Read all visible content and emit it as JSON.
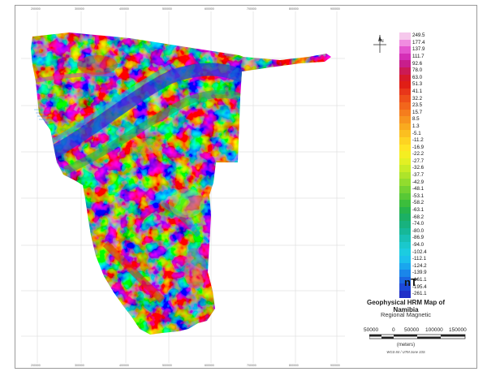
{
  "map": {
    "title": "Geophysical HRM Map of Namibia",
    "subtitle": "Regional Magnetic",
    "unit": "nT",
    "legend": {
      "values": [
        "249.5",
        "177.4",
        "137.9",
        "111.7",
        "92.6",
        "78.0",
        "63.0",
        "51.3",
        "41.1",
        "32.2",
        "23.5",
        "15.7",
        "8.5",
        "1.3",
        "-5.1",
        "-11.2",
        "-16.9",
        "-22.2",
        "-27.7",
        "-32.6",
        "-37.7",
        "-42.9",
        "-48.1",
        "-53.1",
        "-58.2",
        "-63.1",
        "-68.2",
        "-74.0",
        "-80.0",
        "-86.9",
        "-94.0",
        "-102.4",
        "-112.1",
        "-124.2",
        "-139.9",
        "-161.1",
        "-195.4",
        "-261.1"
      ],
      "colors": [
        "#f6c8ec",
        "#f08ce0",
        "#e455cf",
        "#d42fb6",
        "#c81e8c",
        "#cc1a55",
        "#d7192a",
        "#e01e16",
        "#e8361a",
        "#ee4f1a",
        "#f2661c",
        "#f57d1d",
        "#f7941e",
        "#f9aa1f",
        "#fbbf20",
        "#fdd322",
        "#fee424",
        "#f4ee22",
        "#e2f024",
        "#c8ec26",
        "#aee42a",
        "#92dc2e",
        "#74d232",
        "#58c836",
        "#3cbe3c",
        "#26b44c",
        "#1cb064",
        "#18b27e",
        "#16b898",
        "#18c0b4",
        "#1ac8cc",
        "#1ccce0",
        "#1cc0ec",
        "#1aa6ee",
        "#1a86ea",
        "#1a66e2",
        "#1c48d8",
        "#2030c8"
      ]
    },
    "scale": {
      "labels": [
        "50000",
        "0",
        "50000",
        "100000",
        "150000"
      ],
      "units": "(meters)"
    },
    "projection": "WGS 84 / UTM zone 33S",
    "icons": {
      "north": "north-arrow-icon"
    }
  }
}
